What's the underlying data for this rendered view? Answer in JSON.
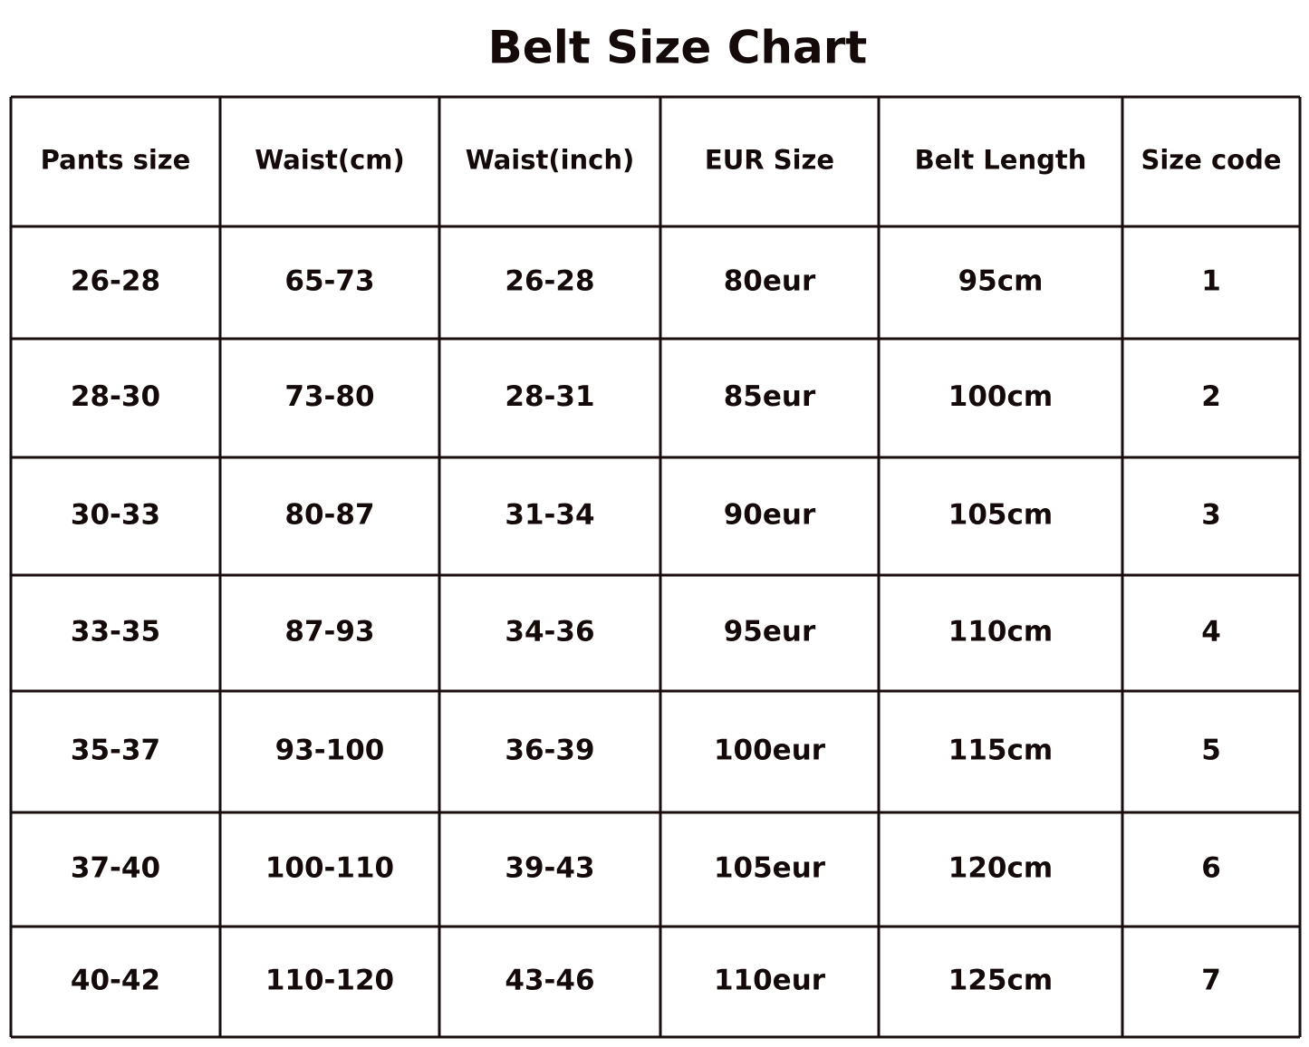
{
  "title": "Belt Size Chart",
  "table": {
    "header": [
      "Pants size",
      "Waist(cm)",
      "Waist(inch)",
      "EUR Size",
      "Belt Length",
      "Size code"
    ],
    "rows": [
      [
        "26-28",
        "65-73",
        "26-28",
        "80eur",
        "95cm",
        "1"
      ],
      [
        "28-30",
        "73-80",
        "28-31",
        "85eur",
        "100cm",
        "2"
      ],
      [
        "30-33",
        "80-87",
        "31-34",
        "90eur",
        "105cm",
        "3"
      ],
      [
        "33-35",
        "87-93",
        "34-36",
        "95eur",
        "110cm",
        "4"
      ],
      [
        "35-37",
        "93-100",
        "36-39",
        "100eur",
        "115cm",
        "5"
      ],
      [
        "37-40",
        "100-110",
        "39-43",
        "105eur",
        "120cm",
        "6"
      ],
      [
        "40-42",
        "110-120",
        "43-46",
        "110eur",
        "125cm",
        "7"
      ]
    ]
  }
}
